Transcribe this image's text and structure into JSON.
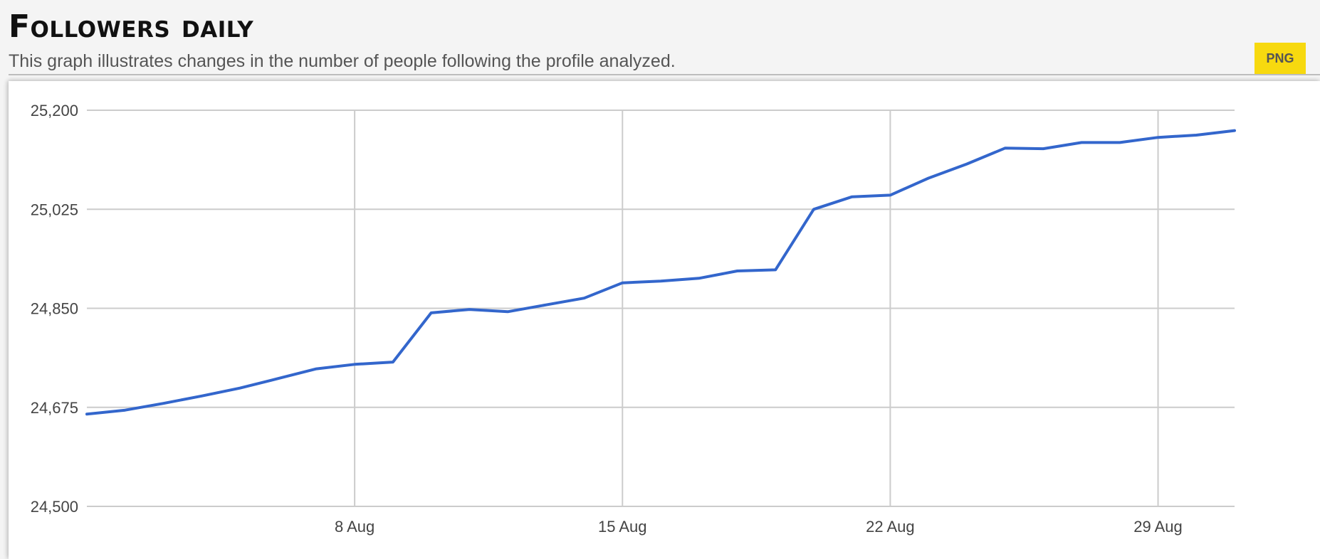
{
  "header": {
    "title": "Followers daily",
    "subtitle": "This graph illustrates changes in the number of people following the profile analyzed.",
    "png_label": "PNG"
  },
  "colors": {
    "line": "#3366cc",
    "grid": "#cccccc",
    "button": "#f7d90f"
  },
  "chart_data": {
    "type": "line",
    "title": "Followers daily",
    "subtitle": "This graph illustrates changes in the number of people following the profile analyzed.",
    "xlabel": "",
    "ylabel": "",
    "ylim": [
      24500,
      25200
    ],
    "yticks": [
      24500,
      24675,
      24850,
      25025,
      25200
    ],
    "ytick_labels": [
      "24,500",
      "24,675",
      "24,850",
      "25,025",
      "25,200"
    ],
    "xlim": [
      "1 Aug",
      "31 Aug"
    ],
    "xticks": [
      "8 Aug",
      "15 Aug",
      "22 Aug",
      "29 Aug"
    ],
    "grid": true,
    "legend": "none",
    "series": [
      {
        "x": [
          "1 Aug",
          "2 Aug",
          "3 Aug",
          "4 Aug",
          "5 Aug",
          "6 Aug",
          "7 Aug",
          "8 Aug",
          "9 Aug",
          "10 Aug",
          "11 Aug",
          "12 Aug",
          "13 Aug",
          "14 Aug",
          "15 Aug",
          "16 Aug",
          "17 Aug",
          "18 Aug",
          "19 Aug",
          "20 Aug",
          "21 Aug",
          "22 Aug",
          "23 Aug",
          "24 Aug",
          "25 Aug",
          "26 Aug",
          "27 Aug",
          "28 Aug",
          "29 Aug",
          "30 Aug",
          "31 Aug"
        ],
        "values": [
          24663,
          24670,
          24682,
          24695,
          24709,
          24726,
          24743,
          24751,
          24755,
          24842,
          24848,
          24844,
          24856,
          24868,
          24895,
          24898,
          24903,
          24916,
          24918,
          25025,
          25047,
          25050,
          25080,
          25105,
          25133,
          25132,
          25143,
          25143,
          25152,
          25156,
          25164
        ]
      }
    ]
  }
}
